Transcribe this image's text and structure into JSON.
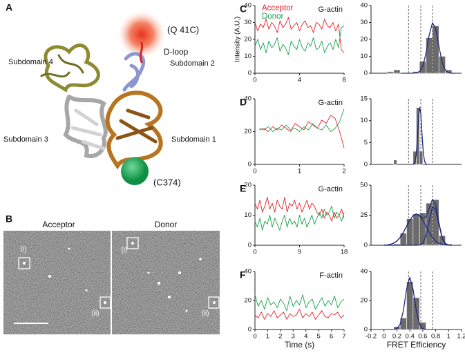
{
  "panel_a": {
    "label": "A",
    "labels": [
      "(Q 41C)",
      "D-loop",
      "Subdomain 4",
      "Subdomain 2",
      "Subdomain 3",
      "Subdomain 1",
      "(C374)"
    ]
  },
  "panel_b": {
    "label": "B",
    "titles": [
      "Acceptor",
      "Donor"
    ],
    "markers": [
      "(i)",
      "(ii)",
      "(i)",
      "(ii)"
    ]
  },
  "chart_data": [
    {
      "type": "line",
      "panel": "C",
      "title": "G-actin",
      "ylabel": "Intensity (A.U.)",
      "x": [
        0,
        0.25,
        0.5,
        0.75,
        1,
        1.25,
        1.5,
        1.75,
        2,
        2.25,
        2.5,
        2.75,
        3,
        3.25,
        3.5,
        3.75,
        4,
        4.25,
        4.5,
        4.75,
        5,
        5.25,
        5.5,
        5.75,
        6,
        6.25,
        6.5,
        6.75,
        7,
        7.25,
        7.5,
        7.75,
        8
      ],
      "series": [
        {
          "name": "Acceptor",
          "color": "#e3202a",
          "values": [
            30,
            25,
            29,
            27,
            32,
            26,
            30,
            28,
            24,
            31,
            27,
            29,
            33,
            26,
            28,
            30,
            25,
            29,
            31,
            27,
            28,
            24,
            30,
            29,
            26,
            32,
            28,
            27,
            30,
            25,
            29,
            14,
            12
          ]
        },
        {
          "name": "Donor",
          "color": "#17a04a",
          "values": [
            16,
            20,
            14,
            18,
            12,
            19,
            15,
            17,
            21,
            13,
            17,
            15,
            11,
            19,
            16,
            14,
            20,
            15,
            13,
            18,
            16,
            21,
            14,
            15,
            19,
            12,
            16,
            18,
            14,
            20,
            15,
            27,
            28
          ]
        }
      ],
      "xlim": [
        0,
        8
      ],
      "xticks": [
        0,
        4,
        8
      ],
      "ylim": [
        0,
        40
      ],
      "yticks": [
        0,
        10,
        20,
        30,
        40
      ]
    },
    {
      "type": "histogram",
      "bins": [
        0.05,
        0.15,
        0.25,
        0.35,
        0.45,
        0.55,
        0.65,
        0.75,
        0.85,
        0.95,
        1.05
      ],
      "values": [
        1,
        2,
        0,
        0,
        1,
        7,
        21,
        28,
        10,
        2
      ],
      "color": "#6b6b6b",
      "fits": [
        {
          "color": "#1f2a80",
          "x": [
            0.3,
            0.4,
            0.5,
            0.55,
            0.6,
            0.65,
            0.7,
            0.75,
            0.8,
            0.85,
            0.9,
            0.95,
            1,
            1.05,
            1.1
          ],
          "values": [
            0,
            0,
            0.2,
            1,
            4.1,
            11.7,
            22.6,
            29.8,
            26.5,
            15.9,
            6.5,
            1.8,
            0.3,
            0,
            0
          ]
        }
      ],
      "reference_lines": [
        0.38,
        0.57,
        0.75
      ],
      "xlim": [
        -0.2,
        1.2
      ],
      "ylim": [
        0,
        40
      ],
      "yticks": [
        0,
        10,
        20,
        30,
        40
      ]
    },
    {
      "type": "line",
      "panel": "D",
      "title": "G-actin",
      "x": [
        0.1,
        0.2,
        0.3,
        0.4,
        0.5,
        0.6,
        0.7,
        0.8,
        0.9,
        1,
        1.1,
        1.2,
        1.3,
        1.4,
        1.5,
        1.6,
        1.7,
        1.8,
        1.9,
        2
      ],
      "series": [
        {
          "color": "#e3202a",
          "values": [
            21,
            22,
            20,
            23,
            21,
            24,
            22,
            20,
            25,
            23,
            21,
            26,
            24,
            22,
            27,
            25,
            30,
            28,
            20,
            10
          ]
        },
        {
          "color": "#17a04a",
          "values": [
            22,
            21,
            23,
            20,
            22,
            21,
            24,
            21,
            22,
            20,
            23,
            21,
            25,
            22,
            21,
            24,
            20,
            22,
            26,
            34
          ]
        }
      ],
      "xlim": [
        0,
        2
      ],
      "xticks": [
        0,
        1,
        2
      ],
      "ylim": [
        0,
        40
      ],
      "yticks": [
        0,
        20,
        40
      ]
    },
    {
      "type": "histogram",
      "bins": [
        0.15,
        0.2,
        0.25,
        0.3,
        0.35,
        0.4,
        0.45,
        0.5,
        0.55,
        0.6,
        0.65
      ],
      "values": [
        1,
        0,
        0,
        0,
        0,
        0,
        3,
        13,
        3,
        0
      ],
      "color": "#6b6b6b",
      "fits": [
        {
          "color": "#1f2a80",
          "x": [
            0.45,
            0.48,
            0.5,
            0.52,
            0.54,
            0.555,
            0.57,
            0.59,
            0.61,
            0.63,
            0.66
          ],
          "values": [
            0,
            0.6,
            2.4,
            6.6,
            11.5,
            13,
            11.5,
            6.6,
            2.4,
            0.6,
            0
          ]
        }
      ],
      "reference_lines": [
        0.38,
        0.57,
        0.75
      ],
      "xlim": [
        -0.2,
        1.2
      ],
      "ylim": [
        0,
        15
      ],
      "yticks": [
        0,
        5,
        10,
        15
      ]
    },
    {
      "type": "line",
      "panel": "E",
      "title": "G-actin",
      "x": [
        0,
        0.5,
        1,
        1.5,
        2,
        2.5,
        3,
        3.5,
        4,
        4.5,
        5,
        5.5,
        6,
        6.5,
        7,
        7.5,
        8,
        8.5,
        9,
        9.5,
        10,
        10.5,
        11,
        11.5,
        12,
        12.5,
        13,
        13.5,
        14,
        14.5,
        15,
        15.5,
        16,
        16.5,
        17,
        17.5,
        18
      ],
      "series": [
        {
          "color": "#e3202a",
          "values": [
            14,
            12,
            15,
            11,
            13,
            16,
            12,
            14,
            11,
            15,
            13,
            12,
            16,
            11,
            14,
            13,
            15,
            12,
            14,
            11,
            13,
            15,
            12,
            14,
            13,
            11,
            10,
            12,
            9,
            11,
            10,
            8,
            11,
            9,
            10,
            12,
            9
          ]
        },
        {
          "color": "#17a04a",
          "values": [
            8,
            6,
            9,
            5,
            8,
            7,
            10,
            6,
            9,
            7,
            5,
            8,
            10,
            6,
            9,
            7,
            8,
            6,
            10,
            7,
            9,
            6,
            8,
            10,
            7,
            9,
            11,
            9,
            12,
            10,
            11,
            13,
            9,
            11,
            10,
            8,
            11
          ]
        }
      ],
      "xlim": [
        0,
        18
      ],
      "xticks": [
        0,
        9,
        18
      ],
      "ylim": [
        0,
        20
      ],
      "yticks": [
        0,
        10,
        20
      ]
    },
    {
      "type": "histogram",
      "bins": [
        0.15,
        0.25,
        0.35,
        0.45,
        0.55,
        0.65,
        0.75,
        0.85,
        0.95,
        1.05
      ],
      "values": [
        1,
        10,
        22,
        26,
        27,
        35,
        38,
        8,
        1
      ],
      "color": "#6b6b6b",
      "fits": [
        {
          "color": "#1f2a80",
          "x": [
            0,
            0.05,
            0.1,
            0.15,
            0.2,
            0.25,
            0.3,
            0.35,
            0.4,
            0.45,
            0.5,
            0.55,
            0.6,
            0.65,
            0.7,
            0.75,
            0.8,
            0.85,
            0.9,
            0.95,
            1,
            1.05
          ],
          "values": [
            0.1,
            0.3,
            0.7,
            1.7,
            3.5,
            6.5,
            10.7,
            15.8,
            20.8,
            24.6,
            26,
            24.6,
            20.8,
            15.8,
            10.7,
            6.5,
            3.5,
            1.7,
            0.7,
            0.3,
            0.1,
            0
          ]
        },
        {
          "color": "#1f2a80",
          "x": [
            0,
            0.05,
            0.1,
            0.15,
            0.2,
            0.25,
            0.3,
            0.35,
            0.4,
            0.45,
            0.5,
            0.55,
            0.6,
            0.65,
            0.7,
            0.75,
            0.8,
            0.85,
            0.9,
            0.95,
            1,
            1.05
          ],
          "values": [
            0,
            0,
            0,
            0,
            0,
            0,
            0,
            0,
            0,
            0,
            0,
            0.2,
            1.8,
            7.6,
            20.1,
            31.7,
            30.1,
            17.1,
            5.8,
            1.2,
            0.1,
            0
          ]
        },
        {
          "color": "#1f2a80",
          "x": [
            0,
            0.05,
            0.1,
            0.15,
            0.2,
            0.25,
            0.3,
            0.35,
            0.4,
            0.45,
            0.5,
            0.55,
            0.6,
            0.65,
            0.7,
            0.75,
            0.8,
            0.85,
            0.9,
            0.95,
            1,
            1.05
          ],
          "values": [
            0.1,
            0.3,
            0.7,
            1.7,
            3.5,
            6.5,
            10.7,
            15.8,
            20.8,
            24.6,
            26,
            24.8,
            22.6,
            23.4,
            30.8,
            38.2,
            33.6,
            18.8,
            6.5,
            1.5,
            0.2,
            0
          ]
        }
      ],
      "reference_lines": [
        0.38,
        0.57,
        0.75
      ],
      "xlim": [
        -0.2,
        1.2
      ],
      "ylim": [
        0,
        50
      ],
      "yticks": [
        0,
        25,
        50
      ]
    },
    {
      "type": "line",
      "panel": "F",
      "title": "F-actin",
      "xlabel": "Time (s)",
      "x": [
        0,
        0.25,
        0.5,
        0.75,
        1,
        1.25,
        1.5,
        1.75,
        2,
        2.25,
        2.5,
        2.75,
        3,
        3.25,
        3.5,
        3.75,
        4,
        4.25,
        4.5,
        4.75,
        5,
        5.25,
        5.5,
        5.75,
        6,
        6.25,
        6.5,
        6.75,
        7
      ],
      "series": [
        {
          "color": "#e3202a",
          "values": [
            10,
            8,
            12,
            7,
            11,
            9,
            13,
            8,
            10,
            12,
            7,
            11,
            9,
            10,
            14,
            8,
            11,
            9,
            12,
            7,
            10,
            13,
            9,
            8,
            11,
            10,
            12,
            8,
            10
          ]
        },
        {
          "color": "#17a04a",
          "values": [
            24,
            16,
            20,
            14,
            22,
            17,
            19,
            15,
            21,
            18,
            13,
            23,
            16,
            20,
            17,
            24,
            15,
            19,
            21,
            14,
            18,
            22,
            16,
            20,
            17,
            23,
            15,
            19,
            21
          ]
        }
      ],
      "xlim": [
        0,
        7
      ],
      "xticks": [
        0,
        1,
        2,
        3,
        4,
        5,
        6,
        7
      ],
      "ylim": [
        0,
        40
      ],
      "yticks": [
        0,
        20,
        40
      ]
    },
    {
      "type": "histogram",
      "xlabel": "FRET Efficiency",
      "bins": [
        0.15,
        0.25,
        0.35,
        0.45,
        0.55,
        0.65
      ],
      "values": [
        2,
        8,
        33,
        22,
        5
      ],
      "color": "#6b6b6b",
      "fits": [
        {
          "color": "#1f2a80",
          "x": [
            0.15,
            0.2,
            0.25,
            0.3,
            0.35,
            0.4,
            0.45,
            0.5,
            0.55,
            0.6,
            0.65
          ],
          "values": [
            0.1,
            0.6,
            3.6,
            13,
            27.9,
            36,
            27.9,
            13,
            3.6,
            0.6,
            0.1
          ]
        }
      ],
      "reference_lines": [
        0.38,
        0.57,
        0.75
      ],
      "xlim": [
        -0.2,
        1.2
      ],
      "xticks": [
        -0.2,
        0,
        0.2,
        0.4,
        0.6,
        0.8,
        1,
        1.2
      ],
      "ylim": [
        0,
        40
      ],
      "yticks": [
        0,
        20,
        40
      ]
    }
  ]
}
